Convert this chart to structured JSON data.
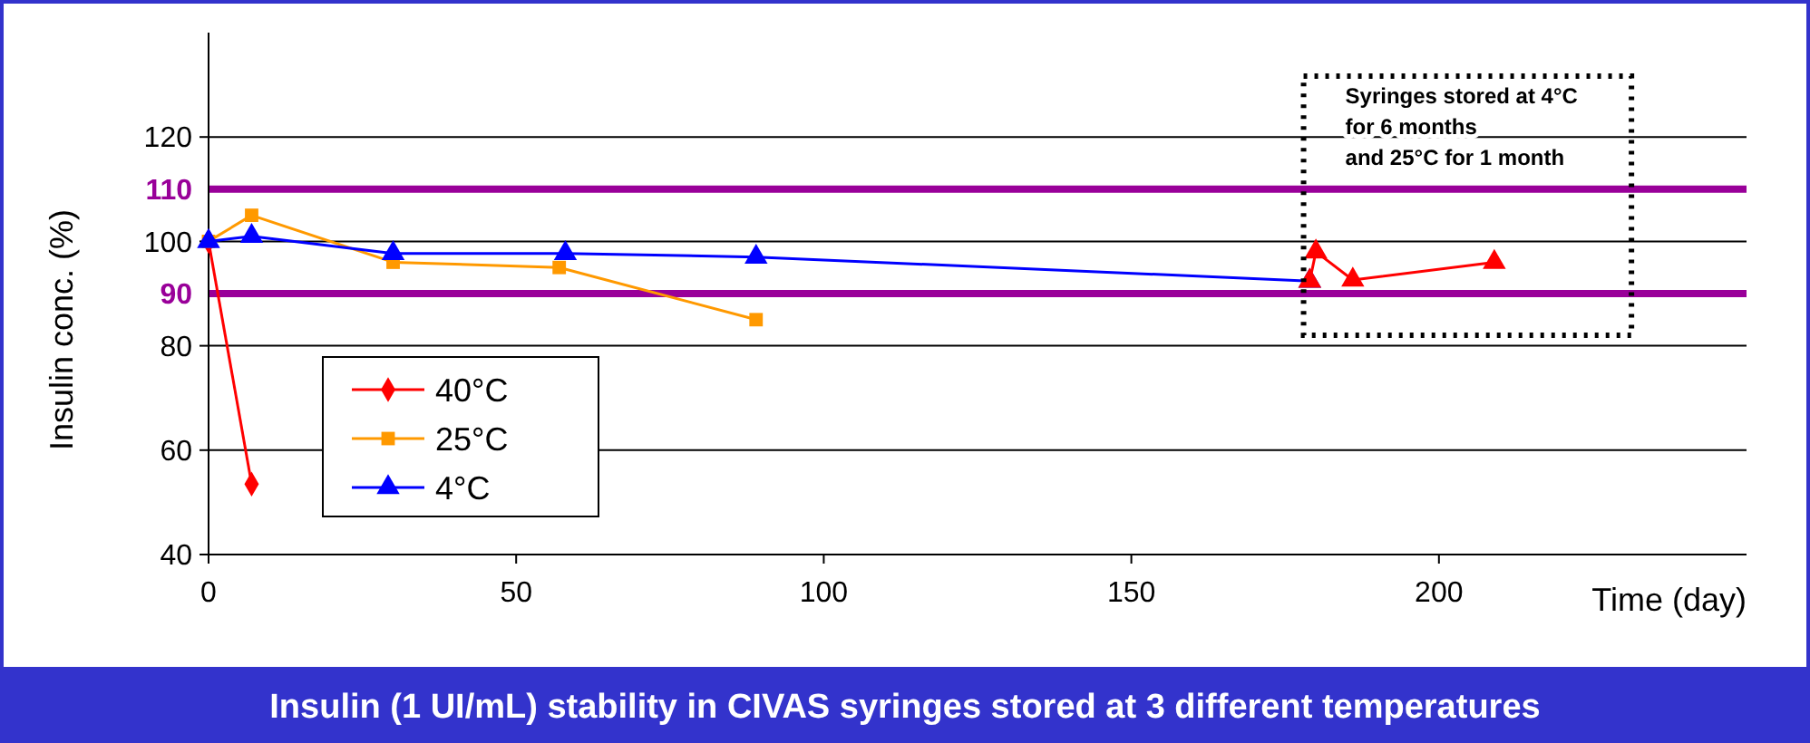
{
  "chart_data": {
    "type": "line",
    "title": "Insulin (1 UI/mL) stability in CIVAS syringes stored at 3 different temperatures",
    "xlabel": "Time (day)",
    "ylabel": "Insulin conc. (%)",
    "xlim": [
      0,
      250
    ],
    "xticks": [
      0,
      50,
      100,
      150,
      200
    ],
    "ylim": [
      40,
      140
    ],
    "yticks": [
      40,
      60,
      80,
      100,
      120
    ],
    "grid": "y",
    "legend": "left",
    "ref_lines": [
      {
        "axis": "y",
        "value": 110,
        "label": "110",
        "color": "#990099"
      },
      {
        "axis": "y",
        "value": 90,
        "label": "90",
        "color": "#990099"
      }
    ],
    "annotations": [
      "Syringes stored at 4°C",
      "for 6 months",
      "and 25°C for 1 month"
    ],
    "series": [
      {
        "name": "40°C",
        "color": "#ff0000",
        "marker": "diamond",
        "x": [
          0,
          7
        ],
        "values": [
          100,
          53.5
        ]
      },
      {
        "name": "25°C",
        "color": "#ff9900",
        "marker": "square",
        "x": [
          0,
          7,
          30,
          57,
          89
        ],
        "values": [
          100,
          105,
          96,
          95,
          85
        ]
      },
      {
        "name": "4°C",
        "color": "#0000ff",
        "marker": "triangle",
        "x": [
          0,
          7,
          30,
          58,
          89,
          179
        ],
        "values": [
          100,
          101,
          97.7,
          97.7,
          97,
          92.4
        ]
      },
      {
        "color": "#ff0000",
        "marker": "triangle",
        "x": [
          179,
          180,
          186,
          209
        ],
        "values": [
          92.4,
          98,
          92.6,
          96
        ]
      }
    ]
  }
}
